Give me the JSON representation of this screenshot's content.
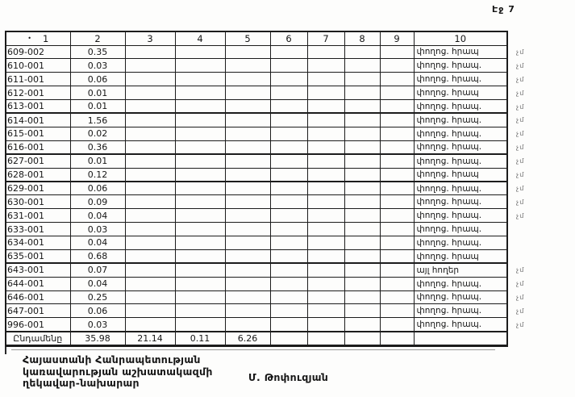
{
  "page_label": "Էջ 7",
  "table": {
    "header": {
      "bullet": "•",
      "columns": [
        "1",
        "2",
        "3",
        "4",
        "5",
        "6",
        "7",
        "8",
        "9",
        "10"
      ]
    },
    "rows": [
      {
        "code": "609-002",
        "area": "0.35",
        "use": "փողոց. հրապ",
        "note": "չմ"
      },
      {
        "code": "610-001",
        "area": "0.03",
        "use": "փողոց. հրապ.",
        "note": "չմ"
      },
      {
        "code": "611-001",
        "area": "0.06",
        "use": "փողոց. հրապ.",
        "note": "չմ"
      },
      {
        "code": "612-001",
        "area": "0.01",
        "use": "փողոց. հրապ",
        "note": "չմ"
      },
      {
        "code": "613-001",
        "area": "0.01",
        "use": "փողոց. հրապ.",
        "note": "չմ"
      },
      {
        "code": "614-001",
        "area": "1.56",
        "use": "փողոց. հրապ.",
        "note": "չմ"
      },
      {
        "code": "615-001",
        "area": "0.02",
        "use": "փողոց. հրապ.",
        "note": "չմ"
      },
      {
        "code": "616-001",
        "area": "0.36",
        "use": "փողոց. հրապ.",
        "note": "չմ"
      },
      {
        "code": "627-001",
        "area": "0.01",
        "use": "փողոց. հրապ.",
        "note": "չմ"
      },
      {
        "code": "628-001",
        "area": "0.12",
        "use": "փողոց. հրապ",
        "note": "չմ"
      },
      {
        "code": "629-001",
        "area": "0.06",
        "use": "փողոց. հրապ.",
        "note": "չմ"
      },
      {
        "code": "630-001",
        "area": "0.09",
        "use": "փողոց. հրապ.",
        "note": "չմ"
      },
      {
        "code": "631-001",
        "area": "0.04",
        "use": "փողոց. հրապ.",
        "note": "չմ"
      },
      {
        "code": "633-001",
        "area": "0.03",
        "use": "փողոց. հրապ.",
        "note": ""
      },
      {
        "code": "634-001",
        "area": "0.04",
        "use": "փողոց. հրապ.",
        "note": ""
      },
      {
        "code": "635-001",
        "area": "0.68",
        "use": "փողոց. հրապ",
        "note": ""
      },
      {
        "code": "643-001",
        "area": "0.07",
        "use": "այլ հողեր",
        "note": "չմ"
      },
      {
        "code": "644-001",
        "area": "0.04",
        "use": "փողոց. հրապ.",
        "note": "չմ"
      },
      {
        "code": "646-001",
        "area": "0.25",
        "use": "փողոց. հրապ.",
        "note": "չմ"
      },
      {
        "code": "647-001",
        "area": "0.06",
        "use": "փողոց. հրապ.",
        "note": "չմ"
      },
      {
        "code": "996-001",
        "area": "0.03",
        "use": "փողոց. հրապ.",
        "note": "չմ"
      }
    ],
    "totals": {
      "label": "Ընդամենը",
      "values": [
        "35.98",
        "21.14",
        "0.11",
        "6.26",
        "",
        "",
        "",
        "",
        ""
      ]
    }
  },
  "signature": {
    "lines": [
      "Հայաստանի Հանրապետության",
      "կառավարության աշխատակազմի",
      "ղեկավար-նախարար"
    ],
    "name": "Մ. Թոփուզյան"
  }
}
